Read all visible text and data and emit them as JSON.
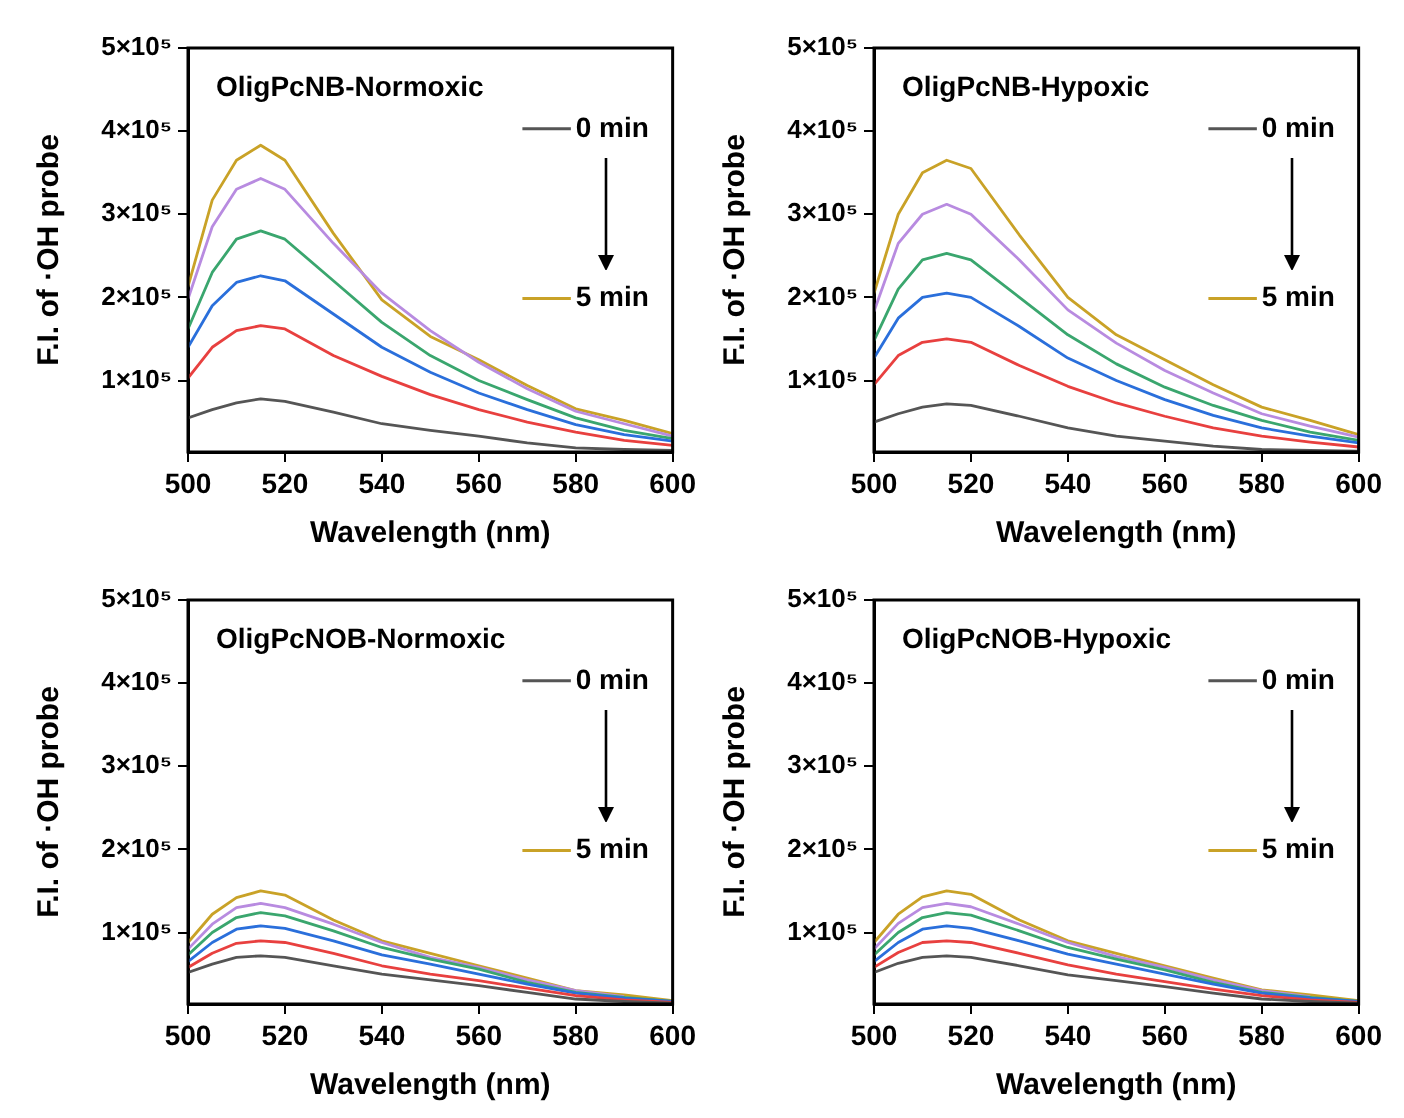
{
  "chart_data": [
    {
      "type": "line",
      "title": "OligPcNB-Normoxic",
      "xlabel": "Wavelength (nm)",
      "ylabel": "F.I. of ·OH probe",
      "x": [
        500,
        505,
        510,
        515,
        520,
        530,
        540,
        550,
        560,
        570,
        580,
        590,
        600
      ],
      "xlim": [
        500,
        600
      ],
      "xticks": [
        500,
        520,
        540,
        560,
        580,
        600
      ],
      "ylim": [
        14000,
        500000
      ],
      "yticks": [
        {
          "value": 100000,
          "label": "1×10⁵"
        },
        {
          "value": 200000,
          "label": "2×10⁵"
        },
        {
          "value": 300000,
          "label": "3×10⁵"
        },
        {
          "value": 400000,
          "label": "4×10⁵"
        },
        {
          "value": 500000,
          "label": "5×10⁵"
        }
      ],
      "grid": false,
      "legend": "top right",
      "marker": "none",
      "line_style": "solid",
      "series": [
        {
          "name": "0 min",
          "color": "#555555",
          "values": [
            55000,
            65000,
            73000,
            78000,
            75000,
            62000,
            48000,
            40000,
            33000,
            25000,
            19000,
            17000,
            16000
          ]
        },
        {
          "color": "#e8403f",
          "values": [
            103000,
            140000,
            160000,
            166000,
            162000,
            130000,
            105000,
            83000,
            65000,
            50000,
            38000,
            28000,
            22000
          ]
        },
        {
          "color": "#2a6fdb",
          "values": [
            140000,
            190000,
            218000,
            226000,
            220000,
            180000,
            140000,
            110000,
            85000,
            65000,
            47000,
            35000,
            27000
          ]
        },
        {
          "color": "#3aa66e",
          "values": [
            162000,
            230000,
            270000,
            280000,
            270000,
            220000,
            170000,
            130000,
            100000,
            77000,
            55000,
            40000,
            30000
          ]
        },
        {
          "color": "#b88be0",
          "values": [
            198000,
            285000,
            330000,
            343000,
            330000,
            265000,
            205000,
            160000,
            122000,
            90000,
            63000,
            48000,
            33000
          ]
        },
        {
          "name": "5 min",
          "color": "#c9a227",
          "values": [
            213000,
            317000,
            365000,
            383000,
            365000,
            277000,
            197000,
            153000,
            125000,
            94000,
            66000,
            52000,
            36000
          ]
        }
      ]
    },
    {
      "type": "line",
      "title": "OligPcNB-Hypoxic",
      "xlabel": "Wavelength (nm)",
      "ylabel": "F.I. of ·OH probe",
      "x": [
        500,
        505,
        510,
        515,
        520,
        530,
        540,
        550,
        560,
        570,
        580,
        590,
        600
      ],
      "xlim": [
        500,
        600
      ],
      "xticks": [
        500,
        520,
        540,
        560,
        580,
        600
      ],
      "ylim": [
        14000,
        500000
      ],
      "yticks": [
        {
          "value": 100000,
          "label": "1×10⁵"
        },
        {
          "value": 200000,
          "label": "2×10⁵"
        },
        {
          "value": 300000,
          "label": "3×10⁵"
        },
        {
          "value": 400000,
          "label": "4×10⁵"
        },
        {
          "value": 500000,
          "label": "5×10⁵"
        }
      ],
      "grid": false,
      "legend": "top right",
      "marker": "none",
      "line_style": "solid",
      "series": [
        {
          "name": "0 min",
          "color": "#555555",
          "values": [
            50000,
            60000,
            68000,
            72000,
            70000,
            57000,
            43000,
            33000,
            27000,
            21000,
            17000,
            16000,
            15000
          ]
        },
        {
          "color": "#e8403f",
          "values": [
            95000,
            130000,
            146000,
            150000,
            146000,
            118000,
            93000,
            73000,
            57000,
            43000,
            33000,
            26000,
            20000
          ]
        },
        {
          "color": "#2a6fdb",
          "values": [
            127000,
            175000,
            200000,
            205000,
            200000,
            165000,
            127000,
            100000,
            77000,
            58000,
            43000,
            33000,
            25000
          ]
        },
        {
          "color": "#3aa66e",
          "values": [
            148000,
            210000,
            245000,
            253000,
            245000,
            200000,
            155000,
            120000,
            92000,
            70000,
            52000,
            38000,
            28000
          ]
        },
        {
          "color": "#b88be0",
          "values": [
            183000,
            265000,
            300000,
            312000,
            300000,
            245000,
            185000,
            145000,
            112000,
            85000,
            60000,
            45000,
            32000
          ]
        },
        {
          "name": "5 min",
          "color": "#c9a227",
          "values": [
            205000,
            300000,
            350000,
            365000,
            355000,
            275000,
            200000,
            155000,
            125000,
            95000,
            68000,
            52000,
            35000
          ]
        }
      ]
    },
    {
      "type": "line",
      "title": "OligPcNOB-Normoxic",
      "xlabel": "Wavelength (nm)",
      "ylabel": "F.I. of ·OH probe",
      "x": [
        500,
        505,
        510,
        515,
        520,
        530,
        540,
        550,
        560,
        570,
        580,
        590,
        600
      ],
      "xlim": [
        500,
        600
      ],
      "xticks": [
        500,
        520,
        540,
        560,
        580,
        600
      ],
      "ylim": [
        14000,
        500000
      ],
      "yticks": [
        {
          "value": 100000,
          "label": "1×10⁵"
        },
        {
          "value": 200000,
          "label": "2×10⁵"
        },
        {
          "value": 300000,
          "label": "3×10⁵"
        },
        {
          "value": 400000,
          "label": "4×10⁵"
        },
        {
          "value": 500000,
          "label": "5×10⁵"
        }
      ],
      "grid": false,
      "legend": "top right",
      "marker": "none",
      "line_style": "solid",
      "series": [
        {
          "name": "0 min",
          "color": "#555555",
          "values": [
            52000,
            62000,
            70000,
            72000,
            70000,
            60000,
            50000,
            43000,
            36000,
            28000,
            20000,
            17000,
            15000
          ]
        },
        {
          "color": "#e8403f",
          "values": [
            58000,
            75000,
            87000,
            90000,
            88000,
            75000,
            60000,
            50000,
            42000,
            33000,
            24000,
            19000,
            16000
          ]
        },
        {
          "color": "#2a6fdb",
          "values": [
            65000,
            88000,
            104000,
            108000,
            105000,
            90000,
            73000,
            62000,
            50000,
            38000,
            27000,
            21000,
            17000
          ]
        },
        {
          "color": "#3aa66e",
          "values": [
            73000,
            100000,
            118000,
            124000,
            120000,
            102000,
            82000,
            68000,
            56000,
            40000,
            28000,
            22000,
            17000
          ]
        },
        {
          "color": "#b88be0",
          "values": [
            80000,
            110000,
            130000,
            135000,
            130000,
            110000,
            88000,
            70000,
            58000,
            43000,
            30000,
            23000,
            null
          ]
        },
        {
          "name": "5 min",
          "color": "#c9a227",
          "values": [
            88000,
            122000,
            142000,
            150000,
            145000,
            115000,
            90000,
            75000,
            60000,
            45000,
            30000,
            25000,
            18000
          ]
        }
      ]
    },
    {
      "type": "line",
      "title": "OligPcNOB-Hypoxic",
      "xlabel": "Wavelength (nm)",
      "ylabel": "F.I. of ·OH probe",
      "x": [
        500,
        505,
        510,
        515,
        520,
        530,
        540,
        550,
        560,
        570,
        580,
        590,
        600
      ],
      "xlim": [
        500,
        600
      ],
      "xticks": [
        500,
        520,
        540,
        560,
        580,
        600
      ],
      "ylim": [
        14000,
        500000
      ],
      "yticks": [
        {
          "value": 100000,
          "label": "1×10⁵"
        },
        {
          "value": 200000,
          "label": "2×10⁵"
        },
        {
          "value": 300000,
          "label": "3×10⁵"
        },
        {
          "value": 400000,
          "label": "4×10⁵"
        },
        {
          "value": 500000,
          "label": "5×10⁵"
        }
      ],
      "grid": false,
      "legend": "top right",
      "marker": "none",
      "line_style": "solid",
      "series": [
        {
          "name": "0 min",
          "color": "#555555",
          "values": [
            52000,
            63000,
            70000,
            72000,
            70000,
            60000,
            49000,
            42000,
            35000,
            27000,
            20000,
            17000,
            15000
          ]
        },
        {
          "color": "#e8403f",
          "values": [
            58000,
            76000,
            88000,
            90000,
            88000,
            75000,
            61000,
            50000,
            41000,
            32000,
            24000,
            19000,
            16000
          ]
        },
        {
          "color": "#2a6fdb",
          "values": [
            65000,
            88000,
            104000,
            108000,
            105000,
            90000,
            74000,
            62000,
            50000,
            38000,
            27000,
            21000,
            17000
          ]
        },
        {
          "color": "#3aa66e",
          "values": [
            73000,
            100000,
            118000,
            124000,
            121000,
            102000,
            82000,
            68000,
            55000,
            40000,
            28000,
            22000,
            17000
          ]
        },
        {
          "color": "#b88be0",
          "values": [
            80000,
            111000,
            130000,
            135000,
            131000,
            110000,
            88000,
            71000,
            58000,
            43000,
            30000,
            23000,
            null
          ]
        },
        {
          "name": "5 min",
          "color": "#c9a227",
          "values": [
            88000,
            122000,
            143000,
            150000,
            146000,
            115000,
            90000,
            75000,
            60000,
            45000,
            31000,
            25000,
            18000
          ]
        }
      ]
    }
  ]
}
